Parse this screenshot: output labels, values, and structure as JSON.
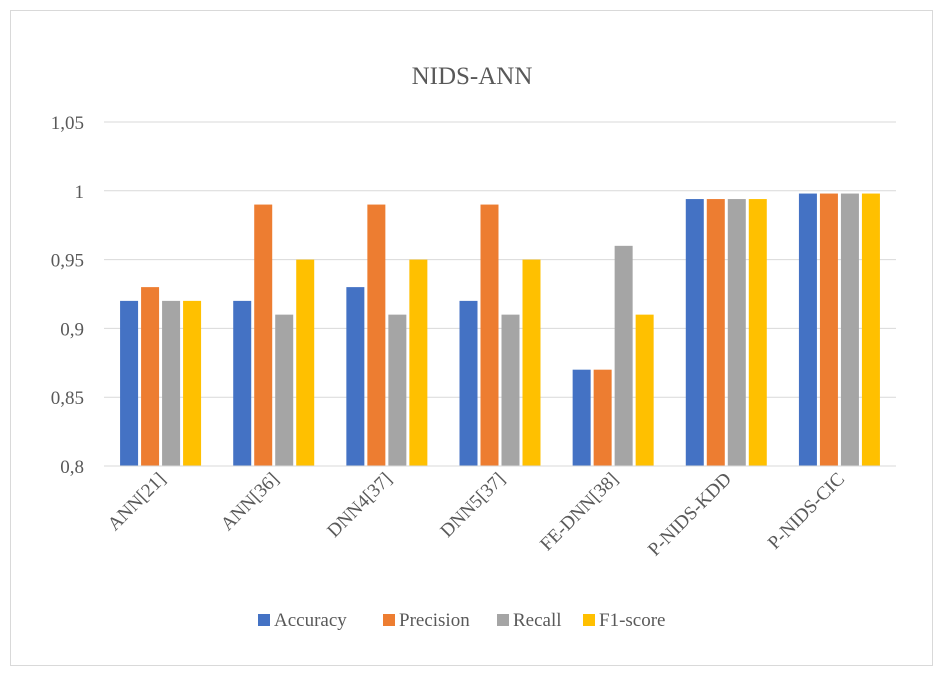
{
  "chart_data": {
    "type": "bar",
    "title": "NIDS-ANN",
    "xlabel": "",
    "ylabel": "",
    "categories": [
      "ANN[21]",
      "ANN[36]",
      "DNN4[37]",
      "DNN5[37]",
      "FE-DNN[38]",
      "P-NIDS-KDD",
      "P-NIDS-CIC"
    ],
    "series": [
      {
        "name": "Accuracy",
        "color": "#4472c4",
        "values": [
          0.92,
          0.92,
          0.93,
          0.92,
          0.87,
          0.994,
          0.998
        ]
      },
      {
        "name": "Precision",
        "color": "#ed7d31",
        "values": [
          0.93,
          0.99,
          0.99,
          0.99,
          0.87,
          0.994,
          0.998
        ]
      },
      {
        "name": "Recall",
        "color": "#a5a5a5",
        "values": [
          0.92,
          0.91,
          0.91,
          0.91,
          0.96,
          0.994,
          0.998
        ]
      },
      {
        "name": "F1-score",
        "color": "#ffc000",
        "values": [
          0.92,
          0.95,
          0.95,
          0.95,
          0.91,
          0.994,
          0.998
        ]
      }
    ],
    "ylim": [
      0.8,
      1.05
    ],
    "yticks": [
      "0,8",
      "0,85",
      "0,9",
      "0,95",
      "1",
      "1,05"
    ],
    "grid": true,
    "legend_position": "bottom"
  }
}
